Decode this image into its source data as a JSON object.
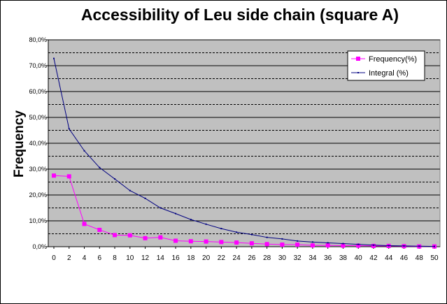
{
  "chart_data": {
    "type": "line",
    "title": "Accessibility of Leu side chain (square A)",
    "xlabel": "",
    "ylabel": "Frequency",
    "x": [
      0,
      2,
      4,
      6,
      8,
      10,
      12,
      14,
      16,
      18,
      20,
      22,
      24,
      26,
      28,
      30,
      32,
      34,
      36,
      38,
      40,
      42,
      44,
      46,
      48,
      50
    ],
    "x_ticks": [
      "0",
      "2",
      "4",
      "6",
      "8",
      "10",
      "12",
      "14",
      "16",
      "18",
      "20",
      "22",
      "24",
      "26",
      "28",
      "30",
      "32",
      "34",
      "36",
      "38",
      "40",
      "42",
      "44",
      "46",
      "48",
      "50"
    ],
    "ylim": [
      0,
      80
    ],
    "y_ticks": [
      "0,0%",
      "10,0%",
      "20,0%",
      "30,0%",
      "40,0%",
      "50,0%",
      "60,0%",
      "70,0%",
      "80,0%"
    ],
    "y_tick_values": [
      0,
      10,
      20,
      30,
      40,
      50,
      60,
      70,
      80
    ],
    "y_minor_gridlines": [
      5,
      15,
      25,
      35,
      45,
      55,
      65,
      75
    ],
    "grid": true,
    "legend_position": "top-right",
    "plot_background": "#c0c0c0",
    "series": [
      {
        "name": "Frequency(%)",
        "color": "#ff00ff",
        "marker": "square",
        "values": [
          27.5,
          27.2,
          8.8,
          6.5,
          4.5,
          4.4,
          3.3,
          3.6,
          2.3,
          2.1,
          2.0,
          1.8,
          1.6,
          1.3,
          1.0,
          0.8,
          0.8,
          0.5,
          0.5,
          0.4,
          0.4,
          0.3,
          0.3,
          0.2,
          0.1,
          0.1
        ]
      },
      {
        "name": "Integral (%)",
        "color": "#000080",
        "marker": "dot",
        "x": [
          0,
          2,
          4,
          6,
          8,
          10,
          12,
          14,
          16,
          18,
          20,
          22,
          24,
          26,
          28,
          30,
          32,
          34,
          36,
          38,
          40,
          42,
          44,
          46,
          48,
          50
        ],
        "values": [
          72.8,
          45.6,
          37.1,
          30.6,
          26.2,
          21.7,
          18.7,
          15.0,
          12.8,
          10.5,
          8.7,
          7.0,
          5.6,
          4.7,
          3.6,
          3.0,
          2.2,
          1.8,
          1.5,
          1.2,
          0.9,
          0.6,
          0.4,
          0.3,
          0.2,
          0.1
        ]
      }
    ]
  }
}
